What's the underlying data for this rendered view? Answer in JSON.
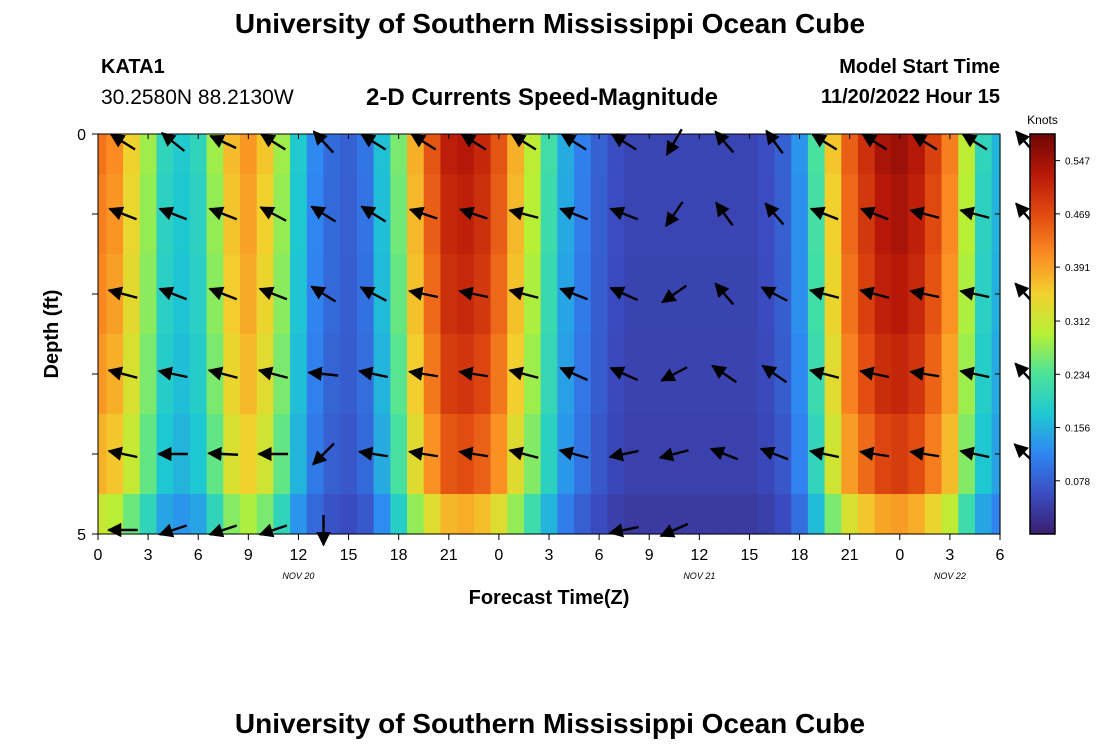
{
  "header": {
    "title": "University of Southern Mississippi Ocean Cube",
    "station_id": "KATA1",
    "coords": "30.2580N  88.2130W",
    "chart_title": "2-D Currents Speed-Magnitude",
    "model_start_label": "Model Start Time",
    "model_start_value": "11/20/2022 Hour 15"
  },
  "footer": {
    "title": "University of Southern Mississippi Ocean Cube"
  },
  "colors": {
    "ramp": [
      "#3b1e6e",
      "#3a4cc0",
      "#2f86f2",
      "#1ec8d2",
      "#4ce39a",
      "#b6f035",
      "#f2d12e",
      "#fb8b22",
      "#e04a10",
      "#b81808",
      "#6e0606"
    ]
  },
  "chart_data": {
    "type": "heatmap",
    "xlabel": "Forecast Time(Z)",
    "ylabel": "Depth (ft)",
    "x_range": [
      0,
      54
    ],
    "x_ticks": [
      0,
      3,
      6,
      9,
      12,
      15,
      18,
      21,
      24,
      27,
      30,
      33,
      36,
      39,
      42,
      45,
      48,
      51,
      54
    ],
    "x_tick_labels": [
      "0",
      "3",
      "6",
      "9",
      "12",
      "15",
      "18",
      "21",
      "0",
      "3",
      "6",
      "9",
      "12",
      "15",
      "18",
      "21",
      "0",
      "3",
      "6"
    ],
    "date_labels": [
      {
        "x": 12,
        "text": "NOV 20"
      },
      {
        "x": 36,
        "text": "NOV 21"
      },
      {
        "x": 51,
        "text": "NOV 22"
      }
    ],
    "y_range": [
      0,
      5
    ],
    "y_ticks": [
      0,
      1,
      2,
      3,
      4,
      5
    ],
    "y_tick_labels": [
      "0",
      "",
      "",
      "",
      "",
      "5"
    ],
    "colorbar": {
      "unit": "Knots",
      "min": 0.0,
      "max": 0.586,
      "tick_values": [
        0.078,
        0.156,
        0.234,
        0.312,
        0.391,
        0.469,
        0.547
      ],
      "tick_labels": [
        "0.078",
        "0.156",
        "0.234",
        "0.312",
        "0.391",
        "0.469",
        "0.547"
      ]
    },
    "hours": [
      0,
      1,
      2,
      3,
      4,
      5,
      6,
      7,
      8,
      9,
      10,
      11,
      12,
      13,
      14,
      15,
      16,
      17,
      18,
      19,
      20,
      21,
      22,
      23,
      24,
      25,
      26,
      27,
      28,
      29,
      30,
      31,
      32,
      33,
      34,
      35,
      36,
      37,
      38,
      39,
      40,
      41,
      42,
      43,
      44,
      45,
      46,
      47,
      48,
      49,
      50,
      51,
      52,
      53,
      54
    ],
    "speed_profile": [
      0.43,
      0.41,
      0.35,
      0.28,
      0.2,
      0.18,
      0.2,
      0.28,
      0.37,
      0.4,
      0.36,
      0.28,
      0.18,
      0.12,
      0.09,
      0.08,
      0.1,
      0.17,
      0.26,
      0.38,
      0.46,
      0.52,
      0.53,
      0.51,
      0.46,
      0.38,
      0.3,
      0.22,
      0.15,
      0.11,
      0.08,
      0.06,
      0.05,
      0.05,
      0.05,
      0.05,
      0.05,
      0.05,
      0.05,
      0.05,
      0.06,
      0.08,
      0.13,
      0.23,
      0.36,
      0.45,
      0.5,
      0.54,
      0.55,
      0.53,
      0.48,
      0.42,
      0.3,
      0.2,
      0.16
    ],
    "layer_depths": [
      0,
      1,
      2,
      3,
      4,
      5
    ],
    "layer_factors": [
      1.0,
      0.98,
      0.96,
      0.93,
      0.88,
      0.72
    ],
    "vectors": [
      {
        "row": 0,
        "col": 0,
        "dx": -0.8,
        "dy": -0.5
      },
      {
        "row": 0,
        "col": 1,
        "dx": -0.75,
        "dy": -0.6
      },
      {
        "row": 0,
        "col": 2,
        "dx": -0.85,
        "dy": -0.4
      },
      {
        "row": 0,
        "col": 3,
        "dx": -0.8,
        "dy": -0.5
      },
      {
        "row": 0,
        "col": 4,
        "dx": -0.65,
        "dy": -0.7
      },
      {
        "row": 0,
        "col": 5,
        "dx": -0.8,
        "dy": -0.5
      },
      {
        "row": 0,
        "col": 6,
        "dx": -0.8,
        "dy": -0.5
      },
      {
        "row": 0,
        "col": 7,
        "dx": -0.8,
        "dy": -0.5
      },
      {
        "row": 0,
        "col": 8,
        "dx": -0.8,
        "dy": -0.5
      },
      {
        "row": 0,
        "col": 9,
        "dx": -0.8,
        "dy": -0.5
      },
      {
        "row": 0,
        "col": 10,
        "dx": -0.8,
        "dy": -0.5
      },
      {
        "row": 0,
        "col": 11,
        "dx": -0.5,
        "dy": 0.85
      },
      {
        "row": 0,
        "col": 12,
        "dx": -0.6,
        "dy": -0.7
      },
      {
        "row": 0,
        "col": 13,
        "dx": -0.55,
        "dy": -0.75
      },
      {
        "row": 0,
        "col": 14,
        "dx": -0.8,
        "dy": -0.5
      },
      {
        "row": 0,
        "col": 15,
        "dx": -0.8,
        "dy": -0.5
      },
      {
        "row": 0,
        "col": 16,
        "dx": -0.8,
        "dy": -0.5
      },
      {
        "row": 0,
        "col": 17,
        "dx": -0.8,
        "dy": -0.5
      },
      {
        "row": 0,
        "col": 18,
        "dx": -0.6,
        "dy": -0.7
      },
      {
        "row": 1,
        "col": 0,
        "dx": -0.9,
        "dy": -0.35
      },
      {
        "row": 1,
        "col": 1,
        "dx": -0.9,
        "dy": -0.35
      },
      {
        "row": 1,
        "col": 2,
        "dx": -0.9,
        "dy": -0.35
      },
      {
        "row": 1,
        "col": 3,
        "dx": -0.85,
        "dy": -0.45
      },
      {
        "row": 1,
        "col": 4,
        "dx": -0.8,
        "dy": -0.5
      },
      {
        "row": 1,
        "col": 5,
        "dx": -0.8,
        "dy": -0.5
      },
      {
        "row": 1,
        "col": 6,
        "dx": -0.9,
        "dy": -0.3
      },
      {
        "row": 1,
        "col": 7,
        "dx": -0.9,
        "dy": -0.3
      },
      {
        "row": 1,
        "col": 8,
        "dx": -0.95,
        "dy": -0.25
      },
      {
        "row": 1,
        "col": 9,
        "dx": -0.9,
        "dy": -0.35
      },
      {
        "row": 1,
        "col": 10,
        "dx": -0.9,
        "dy": -0.35
      },
      {
        "row": 1,
        "col": 11,
        "dx": -0.55,
        "dy": 0.8
      },
      {
        "row": 1,
        "col": 12,
        "dx": -0.55,
        "dy": -0.75
      },
      {
        "row": 1,
        "col": 13,
        "dx": -0.6,
        "dy": -0.7
      },
      {
        "row": 1,
        "col": 14,
        "dx": -0.9,
        "dy": -0.35
      },
      {
        "row": 1,
        "col": 15,
        "dx": -0.9,
        "dy": -0.35
      },
      {
        "row": 1,
        "col": 16,
        "dx": -0.95,
        "dy": -0.25
      },
      {
        "row": 1,
        "col": 17,
        "dx": -0.95,
        "dy": -0.25
      },
      {
        "row": 1,
        "col": 18,
        "dx": -0.6,
        "dy": -0.7
      },
      {
        "row": 2,
        "col": 0,
        "dx": -0.95,
        "dy": -0.25
      },
      {
        "row": 2,
        "col": 1,
        "dx": -0.9,
        "dy": -0.35
      },
      {
        "row": 2,
        "col": 2,
        "dx": -0.9,
        "dy": -0.35
      },
      {
        "row": 2,
        "col": 3,
        "dx": -0.9,
        "dy": -0.35
      },
      {
        "row": 2,
        "col": 4,
        "dx": -0.8,
        "dy": -0.5
      },
      {
        "row": 2,
        "col": 5,
        "dx": -0.85,
        "dy": -0.45
      },
      {
        "row": 2,
        "col": 6,
        "dx": -0.95,
        "dy": -0.2
      },
      {
        "row": 2,
        "col": 7,
        "dx": -0.95,
        "dy": -0.2
      },
      {
        "row": 2,
        "col": 8,
        "dx": -0.95,
        "dy": -0.25
      },
      {
        "row": 2,
        "col": 9,
        "dx": -0.9,
        "dy": -0.35
      },
      {
        "row": 2,
        "col": 10,
        "dx": -0.9,
        "dy": -0.4
      },
      {
        "row": 2,
        "col": 11,
        "dx": -0.8,
        "dy": 0.55
      },
      {
        "row": 2,
        "col": 12,
        "dx": -0.6,
        "dy": -0.7
      },
      {
        "row": 2,
        "col": 13,
        "dx": -0.85,
        "dy": -0.45
      },
      {
        "row": 2,
        "col": 14,
        "dx": -0.95,
        "dy": -0.25
      },
      {
        "row": 2,
        "col": 15,
        "dx": -0.95,
        "dy": -0.25
      },
      {
        "row": 2,
        "col": 16,
        "dx": -0.95,
        "dy": -0.2
      },
      {
        "row": 2,
        "col": 17,
        "dx": -0.95,
        "dy": -0.2
      },
      {
        "row": 2,
        "col": 18,
        "dx": -0.65,
        "dy": -0.7
      },
      {
        "row": 3,
        "col": 0,
        "dx": -0.95,
        "dy": -0.25
      },
      {
        "row": 3,
        "col": 1,
        "dx": -0.95,
        "dy": -0.2
      },
      {
        "row": 3,
        "col": 2,
        "dx": -0.95,
        "dy": -0.25
      },
      {
        "row": 3,
        "col": 3,
        "dx": -0.95,
        "dy": -0.25
      },
      {
        "row": 3,
        "col": 4,
        "dx": -0.98,
        "dy": -0.1
      },
      {
        "row": 3,
        "col": 5,
        "dx": -0.95,
        "dy": -0.2
      },
      {
        "row": 3,
        "col": 6,
        "dx": -0.95,
        "dy": -0.15
      },
      {
        "row": 3,
        "col": 7,
        "dx": -0.95,
        "dy": -0.15
      },
      {
        "row": 3,
        "col": 8,
        "dx": -0.95,
        "dy": -0.25
      },
      {
        "row": 3,
        "col": 9,
        "dx": -0.9,
        "dy": -0.4
      },
      {
        "row": 3,
        "col": 10,
        "dx": -0.9,
        "dy": -0.4
      },
      {
        "row": 3,
        "col": 11,
        "dx": -0.85,
        "dy": 0.45
      },
      {
        "row": 3,
        "col": 12,
        "dx": -0.8,
        "dy": -0.55
      },
      {
        "row": 3,
        "col": 13,
        "dx": -0.8,
        "dy": -0.55
      },
      {
        "row": 3,
        "col": 14,
        "dx": -0.95,
        "dy": -0.25
      },
      {
        "row": 3,
        "col": 15,
        "dx": -0.95,
        "dy": -0.2
      },
      {
        "row": 3,
        "col": 16,
        "dx": -0.95,
        "dy": -0.15
      },
      {
        "row": 3,
        "col": 17,
        "dx": -0.95,
        "dy": -0.2
      },
      {
        "row": 3,
        "col": 18,
        "dx": -0.65,
        "dy": -0.7
      },
      {
        "row": 4,
        "col": 0,
        "dx": -0.95,
        "dy": -0.2
      },
      {
        "row": 4,
        "col": 1,
        "dx": -0.98,
        "dy": 0.0
      },
      {
        "row": 4,
        "col": 2,
        "dx": -0.98,
        "dy": -0.05
      },
      {
        "row": 4,
        "col": 3,
        "dx": -0.98,
        "dy": 0.0
      },
      {
        "row": 4,
        "col": 4,
        "dx": -0.7,
        "dy": 0.7
      },
      {
        "row": 4,
        "col": 5,
        "dx": -0.95,
        "dy": -0.15
      },
      {
        "row": 4,
        "col": 6,
        "dx": -0.95,
        "dy": -0.15
      },
      {
        "row": 4,
        "col": 7,
        "dx": -0.95,
        "dy": -0.15
      },
      {
        "row": 4,
        "col": 8,
        "dx": -0.95,
        "dy": -0.25
      },
      {
        "row": 4,
        "col": 9,
        "dx": -0.95,
        "dy": -0.25
      },
      {
        "row": 4,
        "col": 10,
        "dx": -0.95,
        "dy": 0.2
      },
      {
        "row": 4,
        "col": 11,
        "dx": -0.95,
        "dy": 0.25
      },
      {
        "row": 4,
        "col": 12,
        "dx": -0.9,
        "dy": -0.35
      },
      {
        "row": 4,
        "col": 13,
        "dx": -0.9,
        "dy": -0.35
      },
      {
        "row": 4,
        "col": 14,
        "dx": -0.95,
        "dy": -0.2
      },
      {
        "row": 4,
        "col": 15,
        "dx": -0.95,
        "dy": -0.15
      },
      {
        "row": 4,
        "col": 16,
        "dx": -0.95,
        "dy": -0.15
      },
      {
        "row": 4,
        "col": 17,
        "dx": -0.95,
        "dy": -0.2
      },
      {
        "row": 4,
        "col": 18,
        "dx": -0.7,
        "dy": -0.65
      },
      {
        "row": 5,
        "col": 0,
        "dx": -0.98,
        "dy": 0.0
      },
      {
        "row": 5,
        "col": 1,
        "dx": -0.9,
        "dy": 0.3
      },
      {
        "row": 5,
        "col": 2,
        "dx": -0.9,
        "dy": 0.3
      },
      {
        "row": 5,
        "col": 3,
        "dx": -0.9,
        "dy": 0.3
      },
      {
        "row": 5,
        "col": 4,
        "dx": 0.0,
        "dy": 1.0
      },
      {
        "row": 5,
        "col": 10,
        "dx": -0.95,
        "dy": 0.2
      },
      {
        "row": 5,
        "col": 11,
        "dx": -0.9,
        "dy": 0.4
      }
    ]
  }
}
